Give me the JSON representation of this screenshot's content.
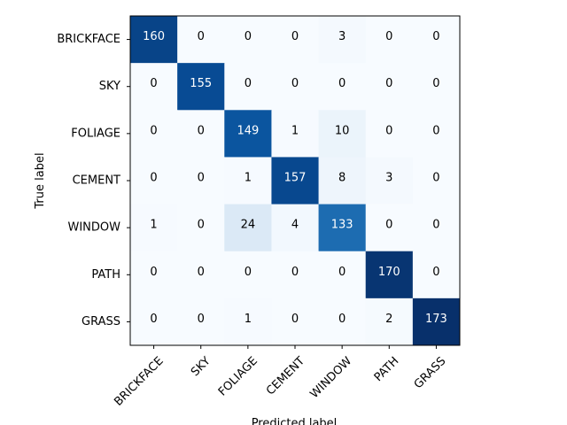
{
  "chart_data": {
    "type": "heatmap",
    "title": "",
    "xlabel": "Predicted label",
    "ylabel": "True label",
    "x_categories": [
      "BRICKFACE",
      "SKY",
      "FOLIAGE",
      "CEMENT",
      "WINDOW",
      "PATH",
      "GRASS"
    ],
    "y_categories": [
      "BRICKFACE",
      "SKY",
      "FOLIAGE",
      "CEMENT",
      "WINDOW",
      "PATH",
      "GRASS"
    ],
    "values": [
      [
        160,
        0,
        0,
        0,
        3,
        0,
        0
      ],
      [
        0,
        155,
        0,
        0,
        0,
        0,
        0
      ],
      [
        0,
        0,
        149,
        1,
        10,
        0,
        0
      ],
      [
        0,
        0,
        1,
        157,
        8,
        3,
        0
      ],
      [
        1,
        0,
        24,
        4,
        133,
        0,
        0
      ],
      [
        0,
        0,
        0,
        0,
        0,
        170,
        0
      ],
      [
        0,
        0,
        1,
        0,
        0,
        2,
        173
      ]
    ],
    "colormap": "Blues",
    "x_tick_rotation": 45,
    "grid": false,
    "legend": "none"
  }
}
